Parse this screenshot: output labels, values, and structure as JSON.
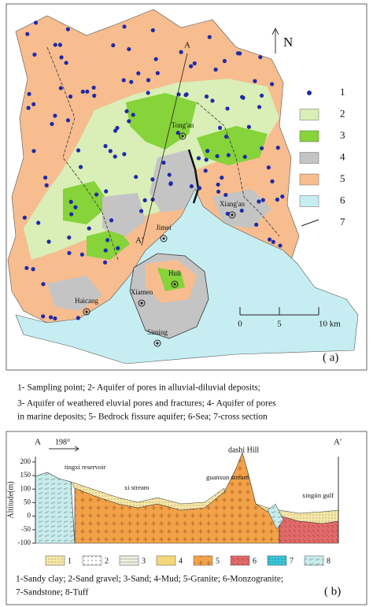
{
  "map": {
    "north": "N",
    "section_line": {
      "start": "A",
      "end": "A'"
    },
    "places": [
      "Tong'an",
      "Xiang'an",
      "Jimei",
      "Huli",
      "Haicang",
      "Xiamen",
      "Siming"
    ],
    "legend": [
      "1",
      "2",
      "3",
      "4",
      "5",
      "6",
      "7"
    ],
    "scale": {
      "xlim": [
        0,
        10
      ],
      "ticks": [
        0,
        5,
        {
          "value": 10,
          "label": "10 km"
        }
      ]
    },
    "panel_label": "( a)",
    "caption": [
      "1- Sampling point; 2- Aquifer of pores in alluvial-diluvial deposits;",
      "3- Aquifer of weathered eluvial pores and fractures; 4- Aquifer of pores",
      "in marine deposits; 5- Bedrock fissure aquifer; 6-Sea; 7-cross section"
    ]
  },
  "section": {
    "start": "A",
    "end": "A'",
    "direction": "198°",
    "ylabel": "Altitude(m)",
    "ylim": [
      -100,
      220
    ],
    "yticks": [
      200,
      150,
      100,
      50,
      0,
      -50,
      -100
    ],
    "features": [
      "tingxi reservoir",
      "xi stream",
      "guanxun stream",
      "dashi Hill",
      "xingiin gulf"
    ],
    "legend": [
      "1",
      "2",
      "3",
      "4",
      "5",
      "6",
      "7",
      "8"
    ],
    "caption": [
      "1-Sandy clay; 2-Sand gravel; 3-Sand; 4-Mud; 5-Granite; 6-Monzogranite;",
      "7-Sandstone; 8-Tuff"
    ],
    "panel_label": "( b)"
  }
}
